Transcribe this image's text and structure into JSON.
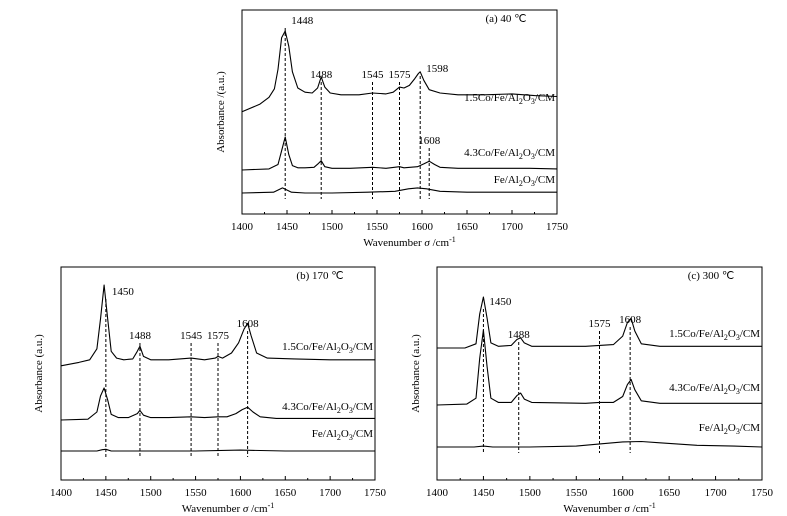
{
  "chart_data": [
    {
      "type": "line",
      "panel_label": "(a) 40 ℃",
      "xlabel": "Wavenumber",
      "xlabel_sym": "σ",
      "xlabel_unit": "/cm",
      "xlabel_exp": "-1",
      "ylabel": "Absorbance /(a.u.)",
      "xlim": [
        1400,
        1750
      ],
      "xticks": [
        "1400",
        "1450",
        "1500",
        "1550",
        "1600",
        "1650",
        "1700",
        "1750"
      ],
      "annotations": [
        {
          "text": "1448",
          "x": 1448
        },
        {
          "text": "1488",
          "x": 1488
        },
        {
          "text": "1545",
          "x": 1545
        },
        {
          "text": "1575",
          "x": 1575
        },
        {
          "text": "1598",
          "x": 1598
        },
        {
          "text": "1608",
          "x": 1608
        }
      ],
      "series": [
        {
          "name": "1.5Co/Fe/Al2O3/CM",
          "label_main": "1.5Co/Fe/Al",
          "sub1": "2",
          "label_mid": "O",
          "sub2": "3",
          "label_end": "/CM",
          "x": [
            1400,
            1420,
            1430,
            1436,
            1440,
            1444,
            1448,
            1452,
            1456,
            1462,
            1470,
            1478,
            1484,
            1488,
            1492,
            1498,
            1510,
            1530,
            1545,
            1560,
            1568,
            1575,
            1580,
            1586,
            1592,
            1596,
            1598,
            1602,
            1608,
            1620,
            1640,
            1670,
            1700,
            1725,
            1750
          ],
          "y": [
            0.05,
            0.14,
            0.22,
            0.32,
            0.55,
            0.92,
            1.0,
            0.82,
            0.52,
            0.33,
            0.28,
            0.27,
            0.33,
            0.46,
            0.34,
            0.27,
            0.25,
            0.25,
            0.27,
            0.26,
            0.28,
            0.34,
            0.33,
            0.36,
            0.44,
            0.5,
            0.52,
            0.42,
            0.31,
            0.27,
            0.25,
            0.25,
            0.26,
            0.24,
            0.23
          ]
        },
        {
          "name": "4.3Co/Fe/Al2O3/CM",
          "label_main": "4.3Co/Fe/Al",
          "sub1": "2",
          "label_mid": "O",
          "sub2": "3",
          "label_end": "/CM",
          "x": [
            1400,
            1430,
            1440,
            1444,
            1448,
            1452,
            1456,
            1462,
            1470,
            1480,
            1485,
            1488,
            1492,
            1500,
            1520,
            1545,
            1560,
            1575,
            1580,
            1595,
            1602,
            1608,
            1614,
            1620,
            1640,
            1680,
            1720,
            1750
          ],
          "y": [
            0.0,
            0.02,
            0.1,
            0.35,
            0.6,
            0.28,
            0.08,
            0.04,
            0.04,
            0.05,
            0.12,
            0.17,
            0.06,
            0.03,
            0.03,
            0.05,
            0.03,
            0.06,
            0.04,
            0.06,
            0.11,
            0.16,
            0.1,
            0.05,
            0.03,
            0.03,
            0.03,
            0.02
          ]
        },
        {
          "name": "Fe/Al2O3/CM",
          "label_main": "Fe/Al",
          "sub1": "2",
          "label_mid": "O",
          "sub2": "3",
          "label_end": "/CM",
          "x": [
            1400,
            1435,
            1441,
            1445,
            1449,
            1455,
            1470,
            1500,
            1540,
            1570,
            1585,
            1595,
            1605,
            1620,
            1650,
            1700,
            1750
          ],
          "y": [
            0.0,
            0.01,
            0.04,
            0.06,
            0.04,
            0.01,
            0.0,
            0.0,
            0.01,
            0.02,
            0.05,
            0.06,
            0.05,
            0.02,
            0.01,
            0.01,
            0.01
          ]
        }
      ],
      "reference_lines": [
        1448,
        1488,
        1545,
        1575,
        1598,
        1608
      ]
    },
    {
      "type": "line",
      "panel_label": "(b) 170 ℃",
      "xlabel": "Wavenumber",
      "xlabel_sym": "σ",
      "xlabel_unit": "/cm",
      "xlabel_exp": "-1",
      "ylabel": "Absorbance (a.u.)",
      "xlim": [
        1400,
        1750
      ],
      "xticks": [
        "1400",
        "1450",
        "1500",
        "1550",
        "1600",
        "1650",
        "1700",
        "1750"
      ],
      "annotations": [
        {
          "text": "1450",
          "x": 1450
        },
        {
          "text": "1488",
          "x": 1488
        },
        {
          "text": "1545",
          "x": 1545
        },
        {
          "text": "1575",
          "x": 1575
        },
        {
          "text": "1608",
          "x": 1608
        }
      ],
      "series": [
        {
          "name": "1.5Co/Fe/Al2O3/CM",
          "label_main": "1.5Co/Fe/Al",
          "sub1": "2",
          "label_mid": "O",
          "sub2": "3",
          "label_end": "/CM",
          "x": [
            1400,
            1420,
            1432,
            1440,
            1444,
            1448,
            1452,
            1456,
            1462,
            1470,
            1480,
            1485,
            1488,
            1492,
            1500,
            1520,
            1545,
            1560,
            1572,
            1575,
            1580,
            1590,
            1598,
            1604,
            1608,
            1612,
            1618,
            1630,
            1660,
            1700,
            1750
          ],
          "y": [
            0.05,
            0.09,
            0.12,
            0.25,
            0.6,
            1.0,
            0.6,
            0.22,
            0.14,
            0.12,
            0.13,
            0.22,
            0.28,
            0.16,
            0.12,
            0.12,
            0.14,
            0.12,
            0.14,
            0.16,
            0.14,
            0.2,
            0.32,
            0.48,
            0.55,
            0.4,
            0.2,
            0.14,
            0.13,
            0.12,
            0.12
          ]
        },
        {
          "name": "4.3Co/Fe/Al2O3/CM",
          "label_main": "4.3Co/Fe/Al",
          "sub1": "2",
          "label_mid": "O",
          "sub2": "3",
          "label_end": "/CM",
          "x": [
            1400,
            1430,
            1440,
            1444,
            1448,
            1452,
            1456,
            1464,
            1475,
            1485,
            1488,
            1492,
            1500,
            1520,
            1545,
            1560,
            1575,
            1585,
            1595,
            1602,
            1608,
            1614,
            1622,
            1640,
            1700,
            1750
          ],
          "y": [
            0.0,
            0.01,
            0.1,
            0.3,
            0.4,
            0.25,
            0.07,
            0.03,
            0.03,
            0.08,
            0.12,
            0.06,
            0.03,
            0.03,
            0.04,
            0.03,
            0.04,
            0.04,
            0.08,
            0.13,
            0.16,
            0.1,
            0.04,
            0.02,
            0.02,
            0.02
          ]
        },
        {
          "name": "Fe/Al2O3/CM",
          "label_main": "Fe/Al",
          "sub1": "2",
          "label_mid": "O",
          "sub2": "3",
          "label_end": "/CM",
          "x": [
            1400,
            1440,
            1446,
            1450,
            1456,
            1500,
            1550,
            1600,
            1650,
            1700,
            1750
          ],
          "y": [
            0.0,
            0.0,
            0.015,
            0.02,
            0.0,
            0.0,
            0.0,
            0.01,
            0.0,
            0.0,
            0.0
          ]
        }
      ],
      "reference_lines": [
        1450,
        1488,
        1545,
        1575,
        1608
      ]
    },
    {
      "type": "line",
      "panel_label": "(c) 300 ℃",
      "xlabel": "Wavenumber",
      "xlabel_sym": "σ",
      "xlabel_unit": "/cm",
      "xlabel_exp": "-1",
      "ylabel": "Absorbance (a.u.)",
      "xlim": [
        1400,
        1750
      ],
      "xticks": [
        "1400",
        "1450",
        "1500",
        "1550",
        "1600",
        "1650",
        "1700",
        "1750"
      ],
      "annotations": [
        {
          "text": "1450",
          "x": 1450
        },
        {
          "text": "1488",
          "x": 1488
        },
        {
          "text": "1575",
          "x": 1575
        },
        {
          "text": "1608",
          "x": 1608
        }
      ],
      "series": [
        {
          "name": "1.5Co/Fe/Al2O3/CM",
          "label_main": "1.5Co/Fe/Al",
          "sub1": "2",
          "label_mid": "O",
          "sub2": "3",
          "label_end": "/CM",
          "x": [
            1400,
            1430,
            1442,
            1446,
            1450,
            1454,
            1458,
            1466,
            1480,
            1486,
            1490,
            1494,
            1502,
            1530,
            1560,
            1575,
            1590,
            1600,
            1605,
            1609,
            1613,
            1620,
            1640,
            1700,
            1750
          ],
          "y": [
            0.0,
            0.0,
            0.05,
            0.4,
            0.6,
            0.35,
            0.06,
            0.02,
            0.03,
            0.1,
            0.12,
            0.06,
            0.02,
            0.02,
            0.02,
            0.03,
            0.04,
            0.14,
            0.3,
            0.35,
            0.2,
            0.05,
            0.02,
            0.02,
            0.02
          ]
        },
        {
          "name": "4.3Co/Fe/Al2O3/CM",
          "label_main": "4.3Co/Fe/Al",
          "sub1": "2",
          "label_mid": "O",
          "sub2": "3",
          "label_end": "/CM",
          "x": [
            1400,
            1432,
            1442,
            1446,
            1450,
            1454,
            1458,
            1466,
            1480,
            1486,
            1490,
            1494,
            1502,
            1560,
            1575,
            1590,
            1600,
            1605,
            1609,
            1613,
            1620,
            1640,
            1700,
            1750
          ],
          "y": [
            0.0,
            0.01,
            0.08,
            0.55,
            0.88,
            0.45,
            0.08,
            0.03,
            0.03,
            0.11,
            0.14,
            0.07,
            0.03,
            0.02,
            0.03,
            0.03,
            0.1,
            0.24,
            0.3,
            0.18,
            0.05,
            0.02,
            0.02,
            0.02
          ]
        },
        {
          "name": "Fe/Al2O3/CM",
          "label_main": "Fe/Al",
          "sub1": "2",
          "label_mid": "O",
          "sub2": "3",
          "label_end": "/CM",
          "x": [
            1400,
            1440,
            1450,
            1460,
            1500,
            1550,
            1580,
            1600,
            1620,
            1640,
            1680,
            1720,
            1750
          ],
          "y": [
            0.0,
            0.0,
            0.01,
            0.0,
            0.0,
            0.01,
            0.04,
            0.06,
            0.065,
            0.05,
            0.02,
            0.01,
            0.0
          ]
        }
      ],
      "reference_lines": [
        1450,
        1488,
        1575,
        1608
      ]
    }
  ]
}
